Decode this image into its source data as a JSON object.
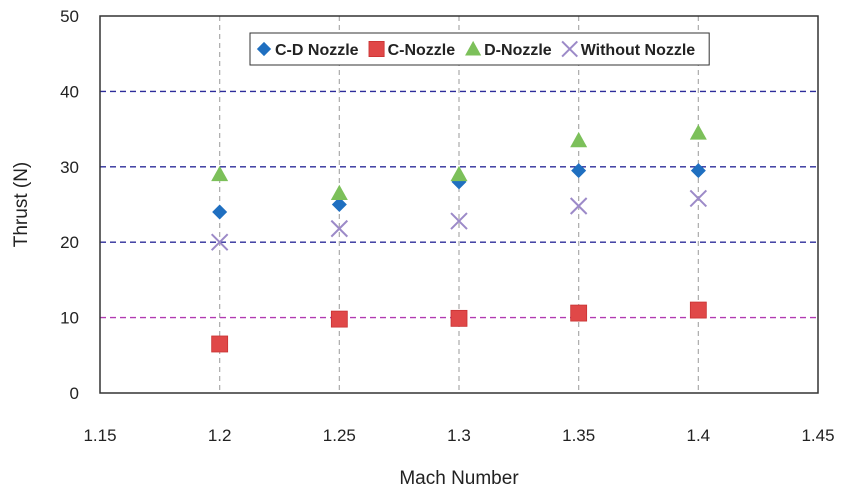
{
  "chart_data": {
    "type": "scatter",
    "title": "",
    "xlabel": "Mach Number",
    "ylabel": "Thrust (N)",
    "xlim": [
      1.15,
      1.45
    ],
    "ylim": [
      0,
      50
    ],
    "xticks": [
      "1.15",
      "1.2",
      "1.25",
      "1.3",
      "1.35",
      "1.4",
      "1.45"
    ],
    "yticks": [
      "0",
      "10",
      "20",
      "30",
      "40",
      "50"
    ],
    "grid": true,
    "legend_position": "top-right",
    "series": [
      {
        "name": "C-D Nozzle",
        "marker": "diamond",
        "color": "#1f6fc0",
        "x": [
          1.2,
          1.25,
          1.3,
          1.35,
          1.4
        ],
        "y": [
          24,
          25,
          28,
          29.5,
          29.5
        ]
      },
      {
        "name": "C-Nozzle",
        "marker": "square",
        "color": "#e04848",
        "x": [
          1.2,
          1.25,
          1.3,
          1.35,
          1.4
        ],
        "y": [
          6.5,
          9.8,
          9.9,
          10.6,
          11
        ]
      },
      {
        "name": "D-Nozzle",
        "marker": "triangle",
        "color": "#7cc05a",
        "x": [
          1.2,
          1.25,
          1.3,
          1.35,
          1.4
        ],
        "y": [
          29,
          26.5,
          29,
          33.5,
          34.5
        ]
      },
      {
        "name": "Without Nozzle",
        "marker": "x",
        "color": "#9c8ac8",
        "x": [
          1.2,
          1.25,
          1.3,
          1.35,
          1.4
        ],
        "y": [
          20,
          21.8,
          22.8,
          24.8,
          25.8
        ]
      }
    ]
  }
}
